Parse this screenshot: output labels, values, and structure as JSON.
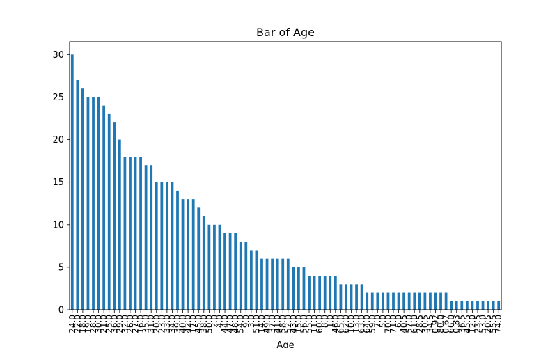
{
  "chart_data": {
    "type": "bar",
    "title": "Bar of Age",
    "xlabel": "Age",
    "ylabel": "",
    "ylim": [
      0,
      31.5
    ],
    "yticks": [
      0,
      5,
      10,
      15,
      20,
      25,
      30
    ],
    "grid": false,
    "legend": "none",
    "bar_color": "#1f77b4",
    "categories": [
      "24.0",
      "22.0",
      "18.0",
      "19.0",
      "28.0",
      "30.0",
      "21.0",
      "25.0",
      "36.0",
      "29.0",
      "32.0",
      "26.0",
      "27.0",
      "16.0",
      "35.0",
      "31.0",
      "20.0",
      "23.0",
      "33.0",
      "34.0",
      "39.0",
      "40.0",
      "42.0",
      "17.0",
      "45.0",
      "38.0",
      "50.0",
      "2.0",
      "4.0",
      "44.0",
      "47.0",
      "48.0",
      "54.0",
      "9.0",
      "3.0",
      "51.0",
      "14.0",
      "49.0",
      "37.0",
      "41.0",
      "58.0",
      "52.0",
      "43.0",
      "15.0",
      "56.0",
      "55.0",
      "11.0",
      "60.0",
      "8.0",
      "1.0",
      "46.0",
      "65.0",
      "62.0",
      "10.0",
      "13.0",
      "63.0",
      "64.0",
      "59.0",
      "7.0",
      "5.0",
      "70.0",
      "71.0",
      "6.0",
      "40.5",
      "57.0",
      "61.0",
      "28.5",
      "30.5",
      "34.5",
      "0.92",
      "80.0",
      "0.67",
      "66.0",
      "0.83",
      "36.5",
      "45.5",
      "12.0",
      "23.5",
      "53.0",
      "20.5",
      "55.5",
      "74.0"
    ],
    "values": [
      30,
      27,
      26,
      25,
      25,
      25,
      24,
      23,
      22,
      20,
      18,
      18,
      18,
      18,
      17,
      17,
      15,
      15,
      15,
      15,
      14,
      13,
      13,
      13,
      12,
      11,
      10,
      10,
      10,
      9,
      9,
      9,
      8,
      8,
      7,
      7,
      6,
      6,
      6,
      6,
      6,
      6,
      5,
      5,
      5,
      4,
      4,
      4,
      4,
      4,
      4,
      3,
      3,
      3,
      3,
      3,
      2,
      2,
      2,
      2,
      2,
      2,
      2,
      2,
      2,
      2,
      2,
      2,
      2,
      2,
      2,
      2,
      1,
      1,
      1,
      1,
      1,
      1,
      1,
      1,
      1,
      1
    ]
  }
}
